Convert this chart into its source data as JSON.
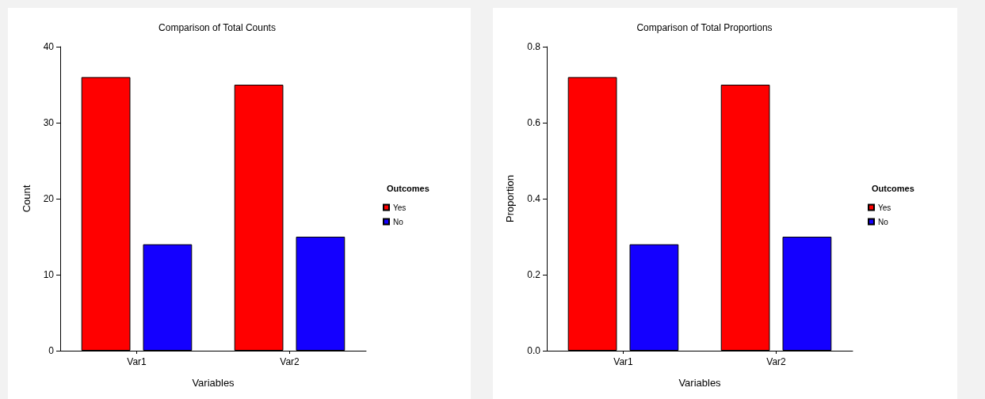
{
  "chart_data": [
    {
      "type": "bar",
      "title": "Comparison of Total Counts",
      "xlabel": "Variables",
      "ylabel": "Count",
      "legend_title": "Outcomes",
      "legend": "right",
      "categories": [
        "Var1",
        "Var2"
      ],
      "series": [
        {
          "name": "Yes",
          "color": "#ff0000",
          "values": [
            36,
            35
          ]
        },
        {
          "name": "No",
          "color": "#1400ff",
          "values": [
            14,
            15
          ]
        }
      ],
      "ylim": [
        0,
        40
      ],
      "yticks": [
        0,
        10,
        20,
        30,
        40
      ]
    },
    {
      "type": "bar",
      "title": "Comparison of Total Proportions",
      "xlabel": "Variables",
      "ylabel": "Proportion",
      "legend_title": "Outcomes",
      "legend": "right",
      "categories": [
        "Var1",
        "Var2"
      ],
      "series": [
        {
          "name": "Yes",
          "color": "#ff0000",
          "values": [
            0.72,
            0.7
          ]
        },
        {
          "name": "No",
          "color": "#1400ff",
          "values": [
            0.28,
            0.3
          ]
        }
      ],
      "ylim": [
        0,
        0.8
      ],
      "yticks": [
        {
          "value": 0,
          "label": "0.0"
        },
        0.2,
        0.4,
        0.6,
        0.8
      ]
    }
  ]
}
